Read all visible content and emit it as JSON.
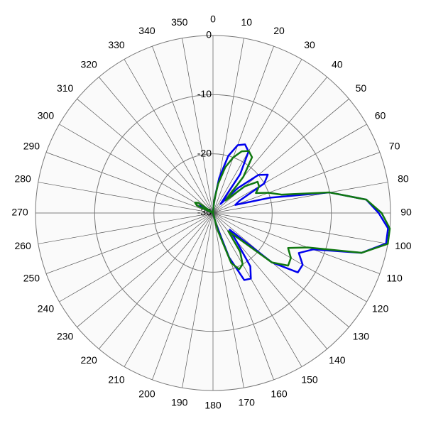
{
  "chart_data": {
    "type": "polar",
    "rlim": [
      -30,
      0
    ],
    "rticks": [
      -30,
      -20,
      -10,
      0
    ],
    "thetaticks": [
      0,
      10,
      20,
      30,
      40,
      50,
      60,
      70,
      80,
      90,
      100,
      110,
      120,
      130,
      140,
      150,
      160,
      170,
      180,
      190,
      200,
      210,
      220,
      230,
      240,
      250,
      260,
      270,
      280,
      290,
      300,
      310,
      320,
      330,
      340,
      350
    ],
    "theta": [
      0,
      5,
      10,
      15,
      20,
      25,
      30,
      35,
      40,
      45,
      50,
      55,
      60,
      65,
      70,
      75,
      80,
      85,
      90,
      95,
      100,
      105,
      110,
      115,
      120,
      125,
      130,
      135,
      140,
      145,
      150,
      155,
      160,
      165,
      170,
      175,
      180,
      185,
      190,
      195,
      200,
      205,
      210,
      215,
      220,
      225,
      230,
      235,
      240,
      245,
      250,
      255,
      260,
      265,
      270,
      275,
      280,
      285,
      290,
      295,
      300,
      305,
      310,
      315,
      320,
      325,
      330,
      335,
      340,
      345,
      350,
      355
    ],
    "series": [
      {
        "color": "#0000ee",
        "values": [
          -30,
          -28,
          -24,
          -20,
          -17.8,
          -17.2,
          -18,
          -22,
          -28,
          -24,
          -20,
          -18.7,
          -20,
          -25,
          -26,
          -20,
          -10,
          -4,
          -2,
          -0.3,
          -0.3,
          -4,
          -12,
          -14,
          -12.5,
          -12.5,
          -17,
          -26,
          -24,
          -19,
          -17.2,
          -17.5,
          -22,
          -28,
          -30,
          -30,
          -30,
          -30,
          -30,
          -30,
          -30,
          -30,
          -30,
          -30,
          -30,
          -30,
          -30,
          -30,
          -30,
          -30,
          -30,
          -30,
          -30,
          -30,
          -30,
          -30,
          -30,
          -30,
          -30,
          -28,
          -27.5,
          -28,
          -30,
          -30,
          -30,
          -30,
          -30,
          -30,
          -30,
          -30,
          -30,
          -30
        ]
      },
      {
        "color": "#107810",
        "values": [
          -30,
          -28,
          -25,
          -22,
          -20,
          -18.5,
          -17.9,
          -18.5,
          -22,
          -27,
          -23,
          -20.8,
          -21,
          -22,
          -20,
          -18,
          -10,
          -4,
          -1.5,
          0,
          0,
          -4,
          -13,
          -16,
          -14.8,
          -14.5,
          -17,
          -24,
          -26,
          -22,
          -20,
          -19.5,
          -21,
          -27,
          -30,
          -30,
          -30,
          -30,
          -30,
          -30,
          -30,
          -30,
          -30,
          -30,
          -30,
          -30,
          -30,
          -30,
          -30,
          -30,
          -30,
          -30,
          -30,
          -30,
          -30,
          -30,
          -30,
          -30,
          -30,
          -27,
          -26.5,
          -27,
          -30,
          -30,
          -30,
          -30,
          -30,
          -30,
          -30,
          -30,
          -30,
          -30
        ]
      }
    ]
  }
}
